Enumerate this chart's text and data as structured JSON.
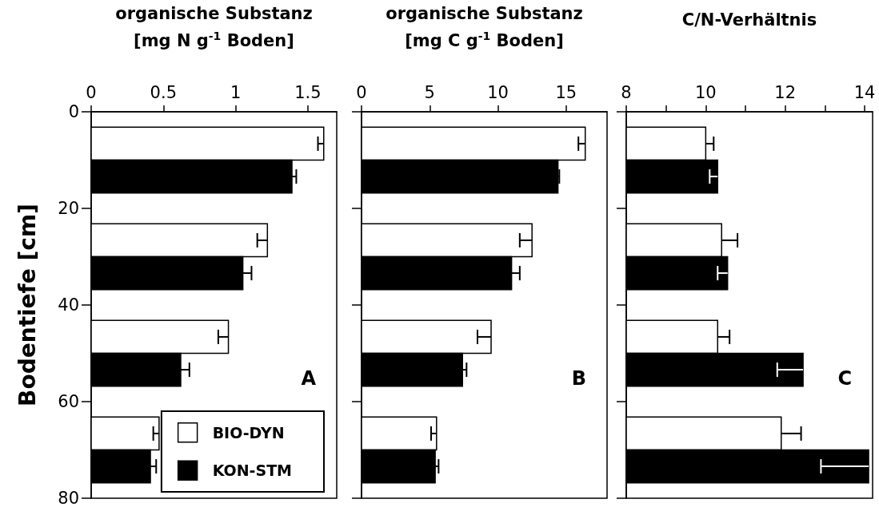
{
  "chart_data": [
    {
      "type": "bar",
      "orientation": "horizontal",
      "title": "organische Substanz",
      "subtitle": "[mg N g$^{-1}$ Boden]",
      "ylabel": "Bodentiefe [cm]",
      "x": [
        10,
        30,
        50,
        70
      ],
      "xlim": [
        0,
        1.7
      ],
      "xticks": [
        0,
        0.5,
        1,
        1.5
      ],
      "ylim": [
        80,
        0
      ],
      "yticks": [
        0,
        20,
        40,
        60,
        80
      ],
      "legend": "bottom right",
      "annotations": [
        "A"
      ],
      "series": [
        {
          "name": "BIO-DYN",
          "color": "#ffffff",
          "values": [
            1.61,
            1.22,
            0.95,
            0.47
          ],
          "errors": [
            [
              1.57,
              1.61
            ],
            [
              1.15,
              1.22
            ],
            [
              0.88,
              0.95
            ],
            [
              0.43,
              0.47
            ]
          ]
        },
        {
          "name": "KON-STM",
          "color": "#000000",
          "values": [
            1.39,
            1.05,
            0.62,
            0.41
          ],
          "errors": [
            [
              1.39,
              1.42
            ],
            [
              1.05,
              1.11
            ],
            [
              0.62,
              0.68
            ],
            [
              0.41,
              0.45
            ]
          ]
        }
      ]
    },
    {
      "type": "bar",
      "orientation": "horizontal",
      "title": "organische Substanz",
      "subtitle": "[mg C g$^{-1}$ Boden]",
      "x": [
        10,
        30,
        50,
        70
      ],
      "xlim": [
        0,
        18
      ],
      "xticks": [
        0,
        5,
        10,
        15
      ],
      "ylim": [
        80,
        0
      ],
      "yticks": [
        0,
        20,
        40,
        60,
        80
      ],
      "tick_labels": "x",
      "annotations": [
        "B"
      ],
      "series": [
        {
          "color": "#ffffff",
          "values": [
            16.4,
            12.5,
            9.5,
            5.5
          ],
          "errors": [
            [
              15.9,
              16.4
            ],
            [
              11.6,
              12.5
            ],
            [
              8.5,
              9.5
            ],
            [
              5.1,
              5.5
            ]
          ]
        },
        {
          "color": "#000000",
          "values": [
            14.4,
            11.0,
            7.4,
            5.4
          ],
          "errors": [
            [
              14.4,
              14.5
            ],
            [
              11.0,
              11.6
            ],
            [
              7.4,
              7.7
            ],
            [
              5.4,
              5.65
            ]
          ]
        }
      ]
    },
    {
      "type": "bar",
      "orientation": "horizontal",
      "title": "C/N-Verhältnis",
      "x": [
        10,
        30,
        50,
        70
      ],
      "xlim": [
        8,
        14.2
      ],
      "xticks": [
        8,
        {
          "value": 9,
          "label": null
        },
        10,
        {
          "value": 11,
          "label": null
        },
        12,
        {
          "value": 13,
          "label": null
        },
        14
      ],
      "ylim": [
        80,
        0
      ],
      "yticks": [
        0,
        20,
        40,
        60,
        80
      ],
      "tick_labels": "x",
      "annotations": [
        "C"
      ],
      "series": [
        {
          "color": "#ffffff",
          "values": [
            10.0,
            10.4,
            10.3,
            11.9
          ],
          "errors": [
            [
              10.0,
              10.2
            ],
            [
              10.4,
              10.8
            ],
            [
              10.3,
              10.6
            ],
            [
              11.9,
              12.4
            ]
          ]
        },
        {
          "color": "#000000",
          "values": [
            10.3,
            10.55,
            12.45,
            14.1
          ],
          "errors": [
            [
              10.1,
              10.3
            ],
            [
              10.3,
              10.55
            ],
            [
              11.8,
              12.45
            ],
            [
              12.9,
              14.1
            ]
          ]
        }
      ]
    }
  ]
}
